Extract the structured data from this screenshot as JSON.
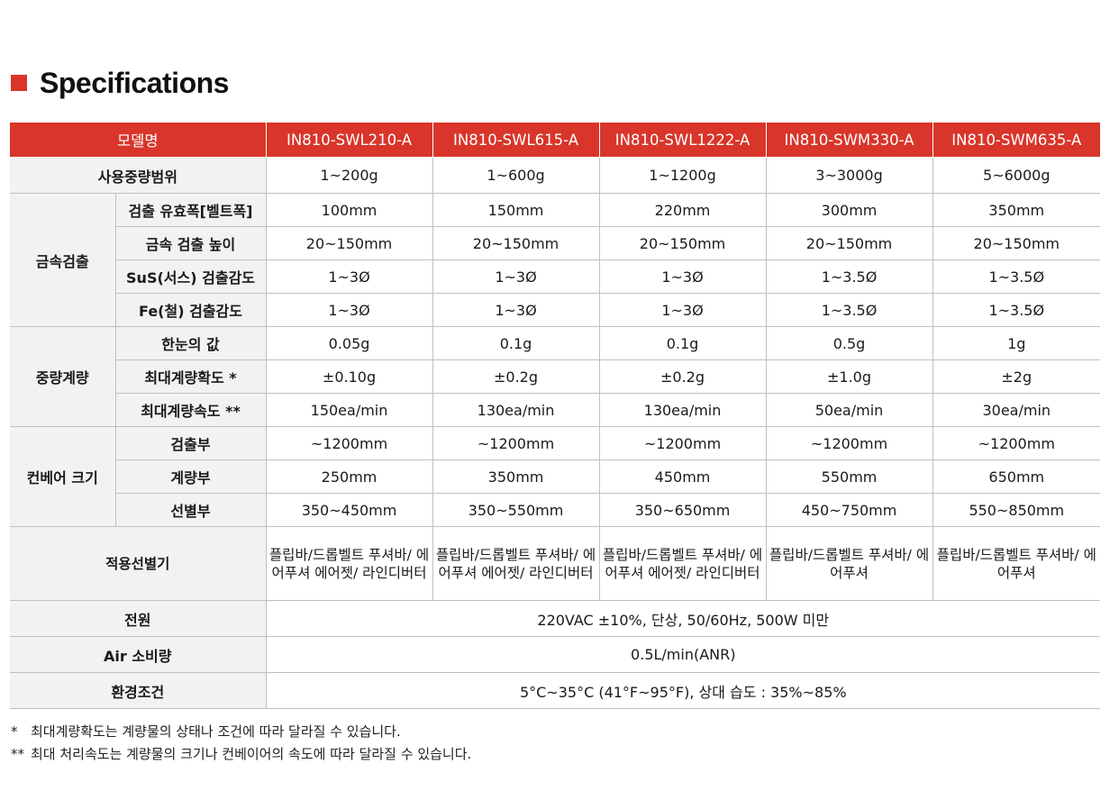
{
  "title": "Specifications",
  "header": {
    "label": "모델명",
    "models": [
      "IN810-SWL210-A",
      "IN810-SWL615-A",
      "IN810-SWL1222-A",
      "IN810-SWM330-A",
      "IN810-SWM635-A"
    ]
  },
  "rows": {
    "weight_range": {
      "label": "사용중량범위",
      "values": [
        "1~200g",
        "1~600g",
        "1~1200g",
        "3~3000g",
        "5~6000g"
      ]
    },
    "metal": {
      "group": "금속검출",
      "width": {
        "label": "검출 유효폭[벨트폭]",
        "values": [
          "100mm",
          "150mm",
          "220mm",
          "300mm",
          "350mm"
        ]
      },
      "height": {
        "label": "금속 검출 높이",
        "values": [
          "20~150mm",
          "20~150mm",
          "20~150mm",
          "20~150mm",
          "20~150mm"
        ]
      },
      "sus": {
        "label": "SuS(서스) 검출감도",
        "values": [
          "1~3Ø",
          "1~3Ø",
          "1~3Ø",
          "1~3.5Ø",
          "1~3.5Ø"
        ]
      },
      "fe": {
        "label": "Fe(철) 검출감도",
        "values": [
          "1~3Ø",
          "1~3Ø",
          "1~3Ø",
          "1~3.5Ø",
          "1~3.5Ø"
        ]
      }
    },
    "weighing": {
      "group": "중량계량",
      "division": {
        "label": "한눈의 값",
        "values": [
          "0.05g",
          "0.1g",
          "0.1g",
          "0.5g",
          "1g"
        ]
      },
      "accuracy": {
        "label": "최대계량확도 *",
        "values": [
          "±0.10g",
          "±0.2g",
          "±0.2g",
          "±1.0g",
          "±2g"
        ]
      },
      "speed": {
        "label": "최대계량속도 **",
        "values": [
          "150ea/min",
          "130ea/min",
          "130ea/min",
          "50ea/min",
          "30ea/min"
        ]
      }
    },
    "conveyor": {
      "group": "컨베어 크기",
      "detect": {
        "label": "검출부",
        "values": [
          "~1200mm",
          "~1200mm",
          "~1200mm",
          "~1200mm",
          "~1200mm"
        ]
      },
      "weigh": {
        "label": "계량부",
        "values": [
          "250mm",
          "350mm",
          "450mm",
          "550mm",
          "650mm"
        ]
      },
      "sort": {
        "label": "선별부",
        "values": [
          "350~450mm",
          "350~550mm",
          "350~650mm",
          "450~750mm",
          "550~850mm"
        ]
      }
    },
    "sorter": {
      "label": "적용선별기",
      "values": [
        "플립바/드롭벨트 푸셔바/ 에어푸셔 에어젯/ 라인디버터",
        "플립바/드롭벨트 푸셔바/ 에어푸셔 에어젯/ 라인디버터",
        "플립바/드롭벨트 푸셔바/ 에어푸셔 에어젯/ 라인디버터",
        "플립바/드롭벨트 푸셔바/ 에어푸셔",
        "플립바/드롭벨트 푸셔바/ 에어푸셔"
      ]
    },
    "power": {
      "label": "전원",
      "value": "220VAC ±10%, 단상, 50/60Hz, 500W 미만"
    },
    "air": {
      "label": "Air 소비량",
      "value": "0.5L/min(ANR)"
    },
    "env": {
      "label": "환경조건",
      "value": "5°C~35°C (41°F~95°F), 상대 습도 : 35%~85%"
    }
  },
  "notes": [
    {
      "mark": "*",
      "text": "최대계량확도는 계량물의 상태나 조건에 따라 달라질 수 있습니다."
    },
    {
      "mark": "**",
      "text": "최대 처리속도는 계량물의 크기나 컨베이어의 속도에 따라 달라질 수 있습니다."
    }
  ],
  "colors": {
    "accent": "#d9352a",
    "label_bg": "#f2f2f2",
    "border": "#bfbfbf"
  }
}
